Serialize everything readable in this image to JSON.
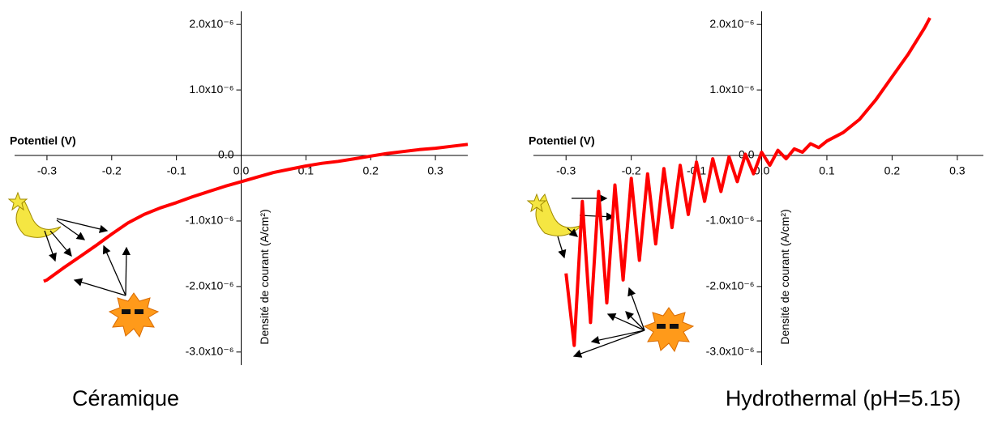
{
  "chart_data": [
    {
      "type": "line",
      "title": "Céramique",
      "xlabel": "Potentiel (V)",
      "ylabel": "Densité de courant (A/cm²)",
      "color": "#ff0000",
      "xlim": [
        -0.35,
        0.35
      ],
      "ylim": [
        -3.2e-06,
        2.2e-06
      ],
      "xticks": [
        -0.3,
        -0.2,
        -0.1,
        {
          "value": 0,
          "label": "0.0"
        },
        0.1,
        0.2,
        0.3
      ],
      "yticks": [
        {
          "value": 2e-06,
          "label": "2.0x10⁻⁶"
        },
        {
          "value": 1e-06,
          "label": "1.0x10⁻⁶"
        },
        {
          "value": 0,
          "label": "0.0"
        },
        {
          "value": -1e-06,
          "label": "-1.0x10⁻⁶"
        },
        {
          "value": -2e-06,
          "label": "-2.0x10⁻⁶"
        },
        {
          "value": -3e-06,
          "label": "-3.0x10⁻⁶"
        }
      ],
      "x": [
        -0.305,
        -0.3,
        -0.275,
        -0.25,
        -0.225,
        -0.2,
        -0.175,
        -0.15,
        -0.125,
        -0.1,
        -0.075,
        -0.05,
        -0.025,
        0,
        0.025,
        0.05,
        0.075,
        0.1,
        0.125,
        0.15,
        0.175,
        0.2,
        0.225,
        0.25,
        0.275,
        0.3,
        0.325,
        0.35
      ],
      "values": [
        -1.92e-06,
        -1.9e-06,
        -1.72e-06,
        -1.55e-06,
        -1.38e-06,
        -1.2e-06,
        -1.03e-06,
        -9e-07,
        -8e-07,
        -7.2e-07,
        -6.3e-07,
        -5.5e-07,
        -4.7e-07,
        -4e-07,
        -3.3e-07,
        -2.6e-07,
        -2.1e-07,
        -1.6e-07,
        -1.2e-07,
        -9e-08,
        -5e-08,
        -1e-08,
        3e-08,
        6e-08,
        9e-08,
        1.1e-07,
        1.4e-07,
        1.7e-07
      ]
    },
    {
      "type": "line",
      "title": "Hydrothermal (pH=5.15)",
      "xlabel": "Potentiel (V)",
      "ylabel": "Densité de courant (A/cm²)",
      "color": "#ff0000",
      "xlim": [
        -0.35,
        0.34
      ],
      "ylim": [
        -3.2e-06,
        2.2e-06
      ],
      "xticks": [
        -0.3,
        -0.2,
        -0.1,
        {
          "value": 0,
          "label": "0.0"
        },
        0.1,
        0.2,
        0.3
      ],
      "yticks": [
        {
          "value": 2e-06,
          "label": "2.0x10⁻⁶"
        },
        {
          "value": 1e-06,
          "label": "1.0x10⁻⁶"
        },
        {
          "value": 0,
          "label": "0.0"
        },
        {
          "value": -1e-06,
          "label": "-1.0x10⁻⁶"
        },
        {
          "value": -2e-06,
          "label": "-2.0x10⁻⁶"
        },
        {
          "value": -3e-06,
          "label": "-3.0x10⁻⁶"
        }
      ],
      "x": [
        -0.3,
        -0.2875,
        -0.275,
        -0.2625,
        -0.25,
        -0.2375,
        -0.225,
        -0.2125,
        -0.2,
        -0.1875,
        -0.175,
        -0.1625,
        -0.15,
        -0.1375,
        -0.125,
        -0.1125,
        -0.1,
        -0.0875,
        -0.075,
        -0.0625,
        -0.05,
        -0.0375,
        -0.025,
        -0.0125,
        0,
        0.0125,
        0.025,
        0.0375,
        0.05,
        0.0625,
        0.075,
        0.0875,
        0.1,
        0.125,
        0.15,
        0.175,
        0.2,
        0.225,
        0.25,
        0.258
      ],
      "values": [
        -1.8e-06,
        -2.9e-06,
        -7e-07,
        -2.55e-06,
        -5.5e-07,
        -2.25e-06,
        -4.5e-07,
        -1.9e-06,
        -3.5e-07,
        -1.6e-06,
        -2.8e-07,
        -1.35e-06,
        -2e-07,
        -1.1e-06,
        -1.5e-07,
        -9e-07,
        -1e-07,
        -7e-07,
        -5e-08,
        -5.5e-07,
        -2e-08,
        -4e-07,
        2e-08,
        -2.8e-07,
        5e-08,
        -1.5e-07,
        8e-08,
        -5e-08,
        1e-07,
        5e-08,
        1.8e-07,
        1.2e-07,
        2.2e-07,
        3.5e-07,
        5.5e-07,
        8.5e-07,
        1.2e-06,
        1.55e-06,
        1.95e-06,
        2.1e-06
      ]
    }
  ]
}
